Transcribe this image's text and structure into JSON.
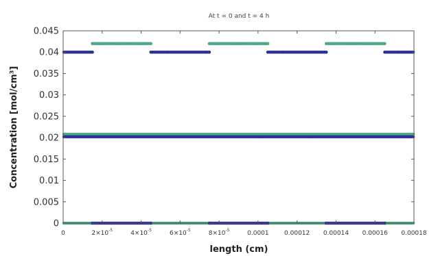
{
  "chart_data": {
    "type": "scatter",
    "title": "At t = 0 and t = 4 h",
    "xlabel": "length (cm)",
    "ylabel": "Concentration [mol/cm³]",
    "xlim": [
      0,
      0.00018
    ],
    "ylim": [
      0,
      0.045
    ],
    "grid": false,
    "legend": "none",
    "x_tick_values": [
      0,
      2e-05,
      4e-05,
      6e-05,
      8e-05,
      0.0001,
      0.00012,
      0.00014,
      0.00016,
      0.00018
    ],
    "x_ticks": [
      {
        "base": "0",
        "exp": ""
      },
      {
        "base": "2×10",
        "exp": "-5"
      },
      {
        "base": "4×10",
        "exp": "-5"
      },
      {
        "base": "6×10",
        "exp": "-5"
      },
      {
        "base": "8×10",
        "exp": "-5"
      },
      {
        "base": "0.0001",
        "exp": ""
      },
      {
        "base": "0.00012",
        "exp": ""
      },
      {
        "base": "0.00014",
        "exp": ""
      },
      {
        "base": "0.00016",
        "exp": ""
      },
      {
        "base": "0.00018",
        "exp": ""
      }
    ],
    "y_tick_values": [
      0,
      0.005,
      0.01,
      0.015,
      0.02,
      0.025,
      0.03,
      0.035,
      0.04,
      0.045
    ],
    "y_ticks": [
      "0",
      "0.005",
      "0.01",
      "0.015",
      "0.02",
      "0.025",
      "0.03",
      "0.035",
      "0.04",
      "0.045"
    ],
    "series_style": [
      {
        "color": "#2f2f96"
      },
      {
        "color": "#4fa888"
      }
    ],
    "series": [
      {
        "segments": [
          {
            "x": [
              0,
              1.5e-05
            ],
            "y": 0.04
          },
          {
            "x": [
              1.5e-05,
              4.5e-05
            ],
            "y": 0
          },
          {
            "x": [
              4.5e-05,
              7.5e-05
            ],
            "y": 0.04
          },
          {
            "x": [
              7.5e-05,
              0.000105
            ],
            "y": 0
          },
          {
            "x": [
              0.000105,
              0.000135
            ],
            "y": 0.04
          },
          {
            "x": [
              0.000135,
              0.000165
            ],
            "y": 0
          },
          {
            "x": [
              0.000165,
              0.00018
            ],
            "y": 0.04
          },
          {
            "x": [
              0,
              0.00018
            ],
            "y": 0.0202
          }
        ]
      },
      {
        "segments": [
          {
            "x": [
              0,
              1.5e-05
            ],
            "y": 0
          },
          {
            "x": [
              1.5e-05,
              4.5e-05
            ],
            "y": 0.042
          },
          {
            "x": [
              4.5e-05,
              7.5e-05
            ],
            "y": 0
          },
          {
            "x": [
              7.5e-05,
              0.000105
            ],
            "y": 0.042
          },
          {
            "x": [
              0.000105,
              0.000135
            ],
            "y": 0
          },
          {
            "x": [
              0.000135,
              0.000165
            ],
            "y": 0.042
          },
          {
            "x": [
              0.000165,
              0.00018
            ],
            "y": 0
          },
          {
            "x": [
              0,
              0.00018
            ],
            "y": 0.0208
          }
        ]
      }
    ]
  }
}
